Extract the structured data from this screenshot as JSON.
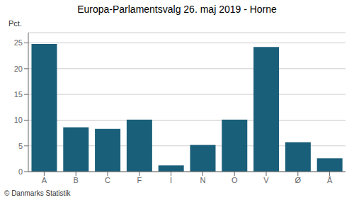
{
  "chart_data": {
    "type": "bar",
    "title": "Europa-Parlamentsvalg 26. maj 2019 - Horne",
    "ylabel": "Pct.",
    "categories": [
      "A",
      "B",
      "C",
      "F",
      "I",
      "N",
      "O",
      "V",
      "Ø",
      "Å"
    ],
    "values": [
      24.8,
      8.6,
      8.3,
      10.1,
      1.2,
      5.2,
      10.1,
      24.2,
      5.7,
      2.6
    ],
    "color": "#1a5f7a",
    "ylim": [
      0,
      27
    ],
    "yticks": [
      0,
      5,
      10,
      15,
      20,
      25
    ],
    "grid": true,
    "annotations": [
      "© Danmarks Statistik"
    ]
  }
}
